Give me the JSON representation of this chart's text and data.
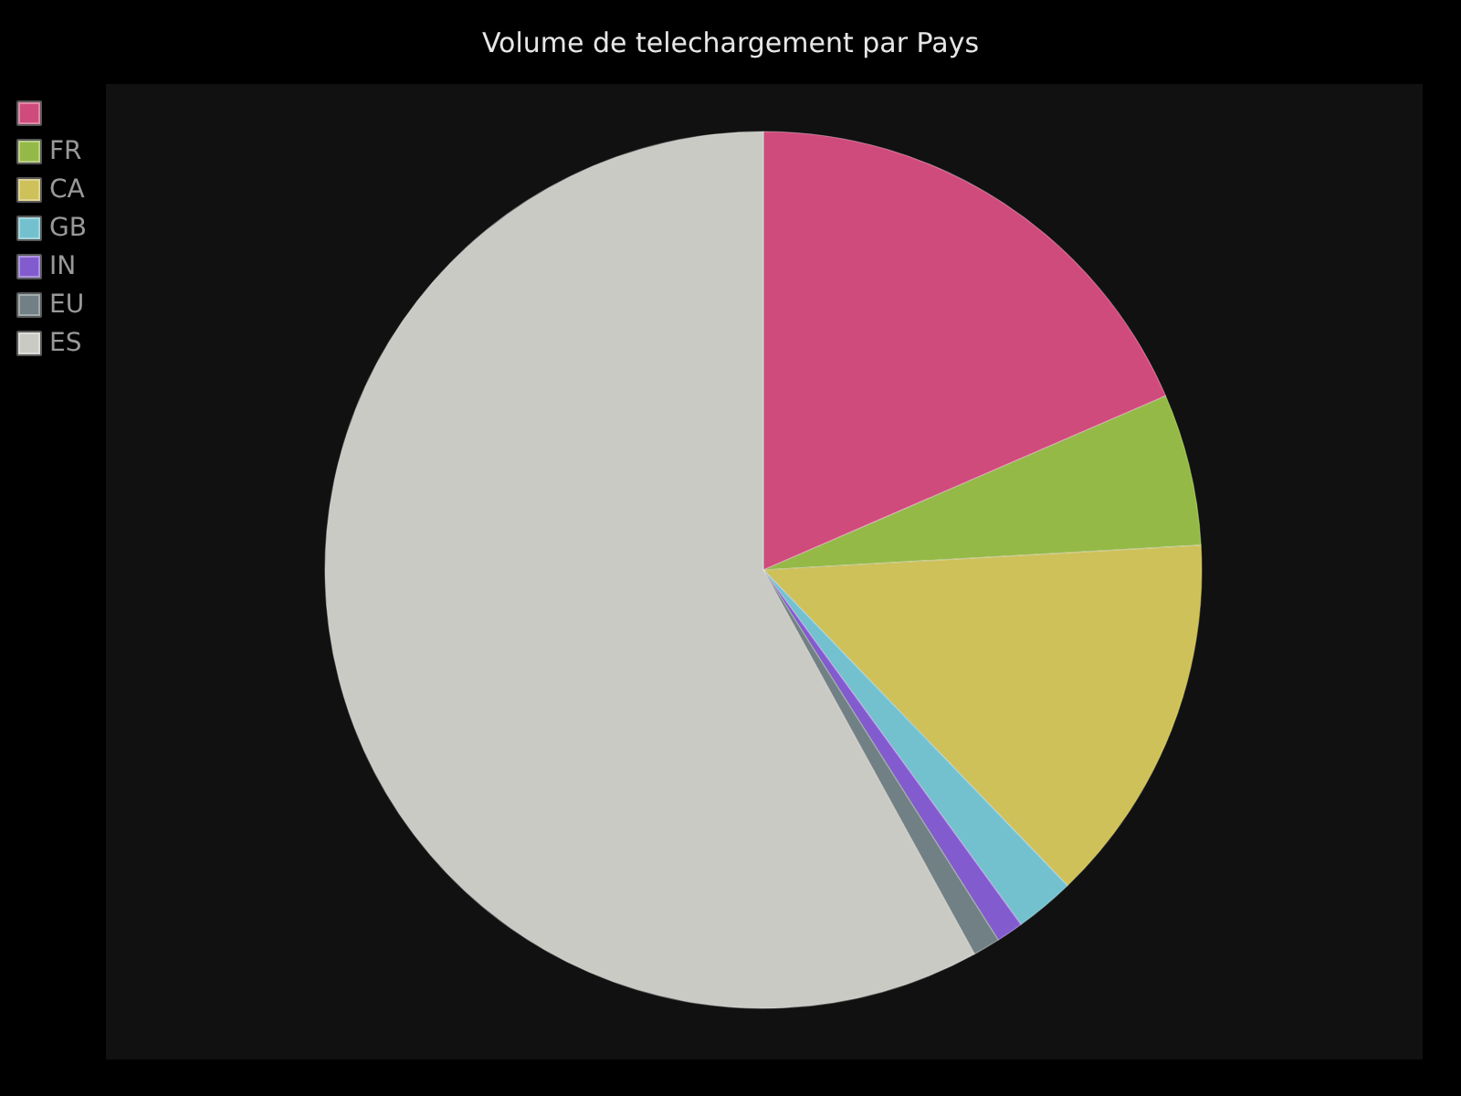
{
  "chart_data": {
    "type": "pie",
    "title": "Volume de telechargement par Pays",
    "categories": [
      null,
      "FR",
      "CA",
      "GB",
      "IN",
      "EU",
      "ES"
    ],
    "values": [
      18.5,
      5.6,
      13.7,
      2.2,
      1.0,
      1.0,
      58.0
    ],
    "colors": [
      "#cf4b7b",
      "#95b947",
      "#cec15a",
      "#73c1ce",
      "#825cce",
      "#718084",
      "#cacac5"
    ],
    "legend": "top left"
  }
}
